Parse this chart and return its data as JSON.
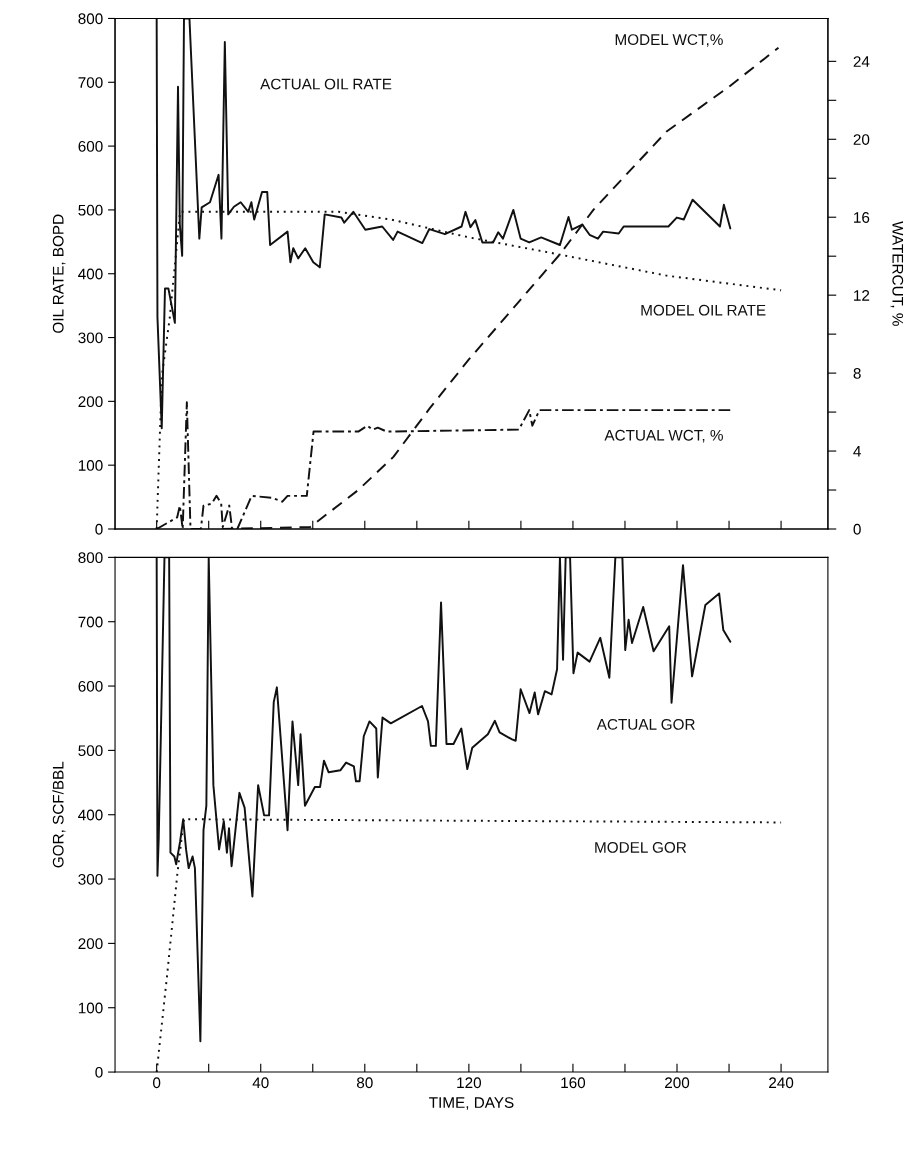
{
  "chart_data": [
    {
      "type": "line",
      "ylabel": "OIL RATE, BOPD",
      "y2label": "WATERCUT, %",
      "tick_labels": "y",
      "xlim": [
        -16,
        258
      ],
      "xticks": [
        {
          "value": 0,
          "label": null
        },
        {
          "value": 20,
          "label": null
        },
        {
          "value": 40,
          "label": null
        },
        {
          "value": 60,
          "label": null
        },
        {
          "value": 80,
          "label": null
        },
        {
          "value": 100,
          "label": null
        },
        {
          "value": 120,
          "label": null
        },
        {
          "value": 140,
          "label": null
        },
        {
          "value": 160,
          "label": null
        },
        {
          "value": 180,
          "label": null
        },
        {
          "value": 200,
          "label": null
        },
        {
          "value": 220,
          "label": null
        },
        {
          "value": 240,
          "label": null
        }
      ],
      "ylim": [
        0,
        800
      ],
      "yticks": [
        0,
        100,
        200,
        300,
        400,
        500,
        600,
        700,
        800
      ],
      "y2lim": [
        0,
        26.2
      ],
      "y2ticks": [
        0,
        {
          "value": 2,
          "label": null
        },
        4,
        {
          "value": 6,
          "label": null
        },
        8,
        {
          "value": 10,
          "label": null
        },
        12,
        {
          "value": 14,
          "label": null
        },
        16,
        {
          "value": 18,
          "label": null
        },
        20,
        {
          "value": 22,
          "label": null
        },
        24
      ],
      "series": [
        {
          "name": "ACTUAL OIL RATE",
          "color": "#111111",
          "line_style": "solid",
          "x": [
            0,
            0.3,
            1.95,
            3.2,
            4.5,
            7.0,
            8.2,
            8.9,
            9.8,
            10.5,
            12.6,
            16.4,
            17.3,
            20.5,
            23.8,
            24.9,
            26.2,
            27.5,
            29.7,
            32.3,
            35.2,
            36.4,
            37.5,
            40.5,
            42.5,
            43.6,
            50.3,
            51.4,
            52.5,
            54.4,
            57.1,
            60.2,
            62.7,
            64.6,
            71,
            72.1,
            75.6,
            80.2,
            86.7,
            90.9,
            92.6,
            102.1,
            104.8,
            110.8,
            117.2,
            118.7,
            120.6,
            122.5,
            125.2,
            129.3,
            131.3,
            133.1,
            137.1,
            139.9,
            143.2,
            147.8,
            155,
            158.3,
            159.6,
            163.6,
            166.4,
            169.6,
            171.6,
            177.6,
            179.5,
            196.7,
            199.9,
            202.6,
            206,
            216.5,
            218,
            220.5
          ],
          "values": [
            800,
            332,
            158,
            377,
            377,
            323,
            693,
            477,
            428,
            800,
            800,
            455,
            504,
            512,
            555,
            455,
            763,
            493,
            505,
            512,
            497,
            512,
            485,
            528,
            528,
            445,
            466,
            418,
            440,
            424,
            440,
            418,
            410,
            493,
            488,
            480,
            497,
            469,
            474,
            453,
            466,
            448,
            470,
            462,
            474,
            497,
            473,
            484,
            449,
            449,
            465,
            455,
            500,
            455,
            449,
            457,
            445,
            489,
            469,
            477,
            461,
            455,
            466,
            463,
            474,
            474,
            488,
            485,
            516,
            474,
            508,
            471
          ]
        },
        {
          "name": "MODEL OIL RATE",
          "color": "#111111",
          "line_style": "dotted",
          "x": [
            0,
            2,
            5,
            9,
            70,
            90,
            120,
            155,
            196,
            240
          ],
          "values": [
            0,
            240,
            330,
            497,
            497,
            485,
            457,
            430,
            397,
            374
          ]
        },
        {
          "name": "MODEL WCT,%",
          "color": "#111111",
          "line_style": "dashed",
          "axis": "y2",
          "x": [
            25,
            59,
            77.5,
            91,
            105,
            120,
            155,
            168,
            196,
            220,
            239
          ],
          "values": [
            0,
            0.1,
            2.0,
            3.7,
            6.2,
            8.7,
            14.1,
            16.4,
            20.4,
            22.7,
            24.7
          ]
        },
        {
          "name": "ACTUAL WCT, %",
          "color": "#111111",
          "line_style": "dashdot",
          "axis": "y2",
          "x": [
            0,
            7.9,
            8.9,
            10,
            11.6,
            13,
            17,
            18,
            21.2,
            23,
            24.8,
            25.4,
            27.9,
            29,
            31,
            36.5,
            44.4,
            48.3,
            50.3,
            57.7,
            60.3,
            77.5,
            81,
            83,
            85,
            88.4,
            139.2,
            143.2,
            144.4,
            147.1,
            220.5
          ],
          "values": [
            0,
            0.6,
            1.2,
            0,
            6.5,
            0,
            0,
            1.2,
            1.3,
            1.7,
            1.3,
            0.1,
            1.2,
            0,
            0,
            1.7,
            1.6,
            1.4,
            1.7,
            1.7,
            5.0,
            5.0,
            5.3,
            5.1,
            5.2,
            5.0,
            5.1,
            6.1,
            5.3,
            6.1,
            6.1
          ]
        }
      ]
    },
    {
      "type": "line",
      "xlabel": "TIME, DAYS",
      "ylabel": "GOR, SCF/BBL",
      "xlim": [
        -16,
        258
      ],
      "xticks": [
        0,
        {
          "value": 20,
          "label": null
        },
        40,
        {
          "value": 60,
          "label": null
        },
        80,
        {
          "value": 100,
          "label": null
        },
        120,
        {
          "value": 140,
          "label": null
        },
        160,
        {
          "value": 180,
          "label": null
        },
        200,
        {
          "value": 220,
          "label": null
        },
        240
      ],
      "ylim": [
        0,
        800
      ],
      "yticks": [
        0,
        100,
        200,
        300,
        400,
        500,
        600,
        700,
        800
      ],
      "series": [
        {
          "name": "ACTUAL GOR",
          "color": "#111111",
          "line_style": "solid",
          "x": [
            0,
            0.3,
            0.8,
            3,
            4.8,
            5.3,
            6.8,
            7.5,
            9,
            10.2,
            11.3,
            12.3,
            13.8,
            14.7,
            16.8,
            18,
            19.1,
            20,
            21.8,
            24,
            25.8,
            27,
            27.8,
            28.8,
            31.8,
            33.8,
            36.8,
            39,
            41.3,
            43.2,
            45,
            46.2,
            50.3,
            52.2,
            54.4,
            55.3,
            57,
            60.8,
            62.8,
            64.3,
            66.1,
            70.6,
            72.8,
            75.8,
            76.6,
            78,
            79.6,
            81.8,
            84.4,
            85,
            86.8,
            90,
            102,
            104.3,
            105.4,
            107.3,
            109.3,
            111.4,
            114.1,
            117.1,
            119.4,
            121.3,
            127.3,
            130,
            131.8,
            136.6,
            138,
            139.9,
            143.3,
            145.3,
            146.6,
            149.2,
            151.8,
            153.9,
            155,
            156.2,
            157.2,
            158.9,
            160.2,
            161.8,
            166.4,
            170.5,
            174,
            176.3,
            179,
            180.1,
            181.4,
            182.7,
            187,
            191,
            197,
            197.9,
            202.3,
            205.8,
            210.9,
            216.2,
            217.8,
            220.5
          ],
          "values": [
            800,
            305,
            364,
            800,
            800,
            341,
            335,
            323,
            358,
            393,
            346,
            317,
            335,
            317,
            48,
            376,
            414,
            800,
            446,
            346,
            390,
            341,
            379,
            320,
            434,
            411,
            273,
            446,
            399,
            399,
            575,
            598,
            376,
            545,
            446,
            525,
            414,
            443,
            443,
            484,
            466,
            469,
            481,
            475,
            452,
            452,
            522,
            545,
            534,
            458,
            551,
            542,
            569,
            545,
            507,
            507,
            730,
            510,
            510,
            534,
            471,
            504,
            525,
            546,
            528,
            517,
            515,
            595,
            558,
            590,
            556,
            592,
            587,
            626,
            800,
            641,
            800,
            800,
            620,
            652,
            638,
            675,
            613,
            800,
            800,
            656,
            703,
            667,
            723,
            654,
            693,
            574,
            788,
            615,
            726,
            744,
            687,
            669
          ]
        },
        {
          "name": "MODEL GOR",
          "color": "#111111",
          "line_style": "dotted",
          "x": [
            0,
            4,
            8,
            10.5,
            240
          ],
          "values": [
            0,
            150,
            310,
            393,
            388
          ]
        }
      ]
    }
  ]
}
